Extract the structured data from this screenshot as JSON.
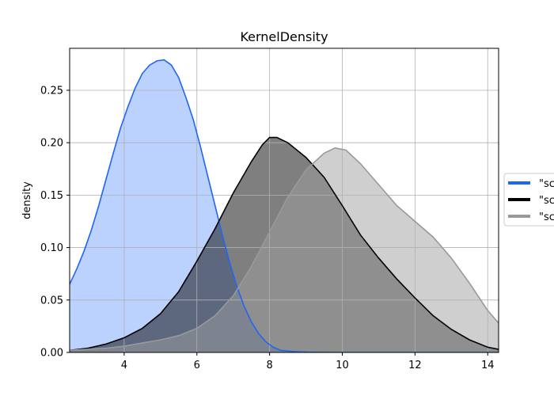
{
  "chart_data": {
    "type": "area",
    "title": "KernelDensity",
    "xlabel": "",
    "ylabel": "density",
    "xlim": [
      2.5,
      14.3
    ],
    "ylim": [
      0,
      0.29
    ],
    "x_ticks": [
      4,
      6,
      8,
      10,
      12,
      14
    ],
    "x_tick_labels": [
      "4",
      "6",
      "8",
      "10",
      "12",
      "14"
    ],
    "y_ticks": [
      0.0,
      0.05,
      0.1,
      0.15,
      0.2,
      0.25
    ],
    "y_tick_labels": [
      "0.00",
      "0.05",
      "0.10",
      "0.15",
      "0.20",
      "0.25"
    ],
    "grid": true,
    "legend_position": "right",
    "series": [
      {
        "name": "\"sc",
        "line_color": "#1f66f5",
        "fill_color": "#8db3fd",
        "points": [
          [
            2.5,
            0.065
          ],
          [
            2.7,
            0.08
          ],
          [
            2.9,
            0.097
          ],
          [
            3.1,
            0.117
          ],
          [
            3.3,
            0.14
          ],
          [
            3.5,
            0.165
          ],
          [
            3.7,
            0.19
          ],
          [
            3.9,
            0.214
          ],
          [
            4.1,
            0.234
          ],
          [
            4.3,
            0.252
          ],
          [
            4.5,
            0.266
          ],
          [
            4.7,
            0.274
          ],
          [
            4.9,
            0.278
          ],
          [
            5.1,
            0.279
          ],
          [
            5.3,
            0.274
          ],
          [
            5.5,
            0.262
          ],
          [
            5.7,
            0.243
          ],
          [
            5.9,
            0.222
          ],
          [
            6.1,
            0.196
          ],
          [
            6.3,
            0.168
          ],
          [
            6.5,
            0.14
          ],
          [
            6.7,
            0.112
          ],
          [
            6.9,
            0.086
          ],
          [
            7.1,
            0.063
          ],
          [
            7.3,
            0.044
          ],
          [
            7.5,
            0.029
          ],
          [
            7.7,
            0.018
          ],
          [
            7.9,
            0.01
          ],
          [
            8.1,
            0.005
          ],
          [
            8.3,
            0.002
          ],
          [
            8.6,
            0.001
          ],
          [
            9.0,
            0.0003
          ],
          [
            10.0,
            0.0
          ],
          [
            14.3,
            0.0
          ]
        ]
      },
      {
        "name": "\"sc",
        "line_color": "#000000",
        "fill_color": "#000000",
        "points": [
          [
            2.5,
            0.002
          ],
          [
            3.0,
            0.004
          ],
          [
            3.5,
            0.008
          ],
          [
            4.0,
            0.014
          ],
          [
            4.5,
            0.023
          ],
          [
            5.0,
            0.037
          ],
          [
            5.5,
            0.058
          ],
          [
            6.0,
            0.087
          ],
          [
            6.5,
            0.118
          ],
          [
            7.0,
            0.152
          ],
          [
            7.5,
            0.182
          ],
          [
            7.8,
            0.198
          ],
          [
            8.0,
            0.205
          ],
          [
            8.2,
            0.205
          ],
          [
            8.5,
            0.2
          ],
          [
            9.0,
            0.186
          ],
          [
            9.5,
            0.167
          ],
          [
            10.0,
            0.14
          ],
          [
            10.5,
            0.112
          ],
          [
            11.0,
            0.09
          ],
          [
            11.5,
            0.07
          ],
          [
            12.0,
            0.052
          ],
          [
            12.5,
            0.035
          ],
          [
            13.0,
            0.022
          ],
          [
            13.5,
            0.012
          ],
          [
            14.0,
            0.005
          ],
          [
            14.3,
            0.003
          ]
        ]
      },
      {
        "name": "\"sc",
        "line_color": "#999999",
        "fill_color": "#a0a0a0",
        "points": [
          [
            2.5,
            0.002
          ],
          [
            3.0,
            0.003
          ],
          [
            3.5,
            0.004
          ],
          [
            4.0,
            0.006
          ],
          [
            4.5,
            0.009
          ],
          [
            5.0,
            0.012
          ],
          [
            5.5,
            0.016
          ],
          [
            6.0,
            0.023
          ],
          [
            6.5,
            0.035
          ],
          [
            7.0,
            0.054
          ],
          [
            7.5,
            0.082
          ],
          [
            8.0,
            0.115
          ],
          [
            8.5,
            0.148
          ],
          [
            9.0,
            0.174
          ],
          [
            9.5,
            0.19
          ],
          [
            9.8,
            0.195
          ],
          [
            10.1,
            0.193
          ],
          [
            10.5,
            0.18
          ],
          [
            11.0,
            0.16
          ],
          [
            11.5,
            0.14
          ],
          [
            12.0,
            0.125
          ],
          [
            12.5,
            0.11
          ],
          [
            13.0,
            0.09
          ],
          [
            13.5,
            0.066
          ],
          [
            14.0,
            0.04
          ],
          [
            14.3,
            0.028
          ]
        ]
      }
    ]
  }
}
